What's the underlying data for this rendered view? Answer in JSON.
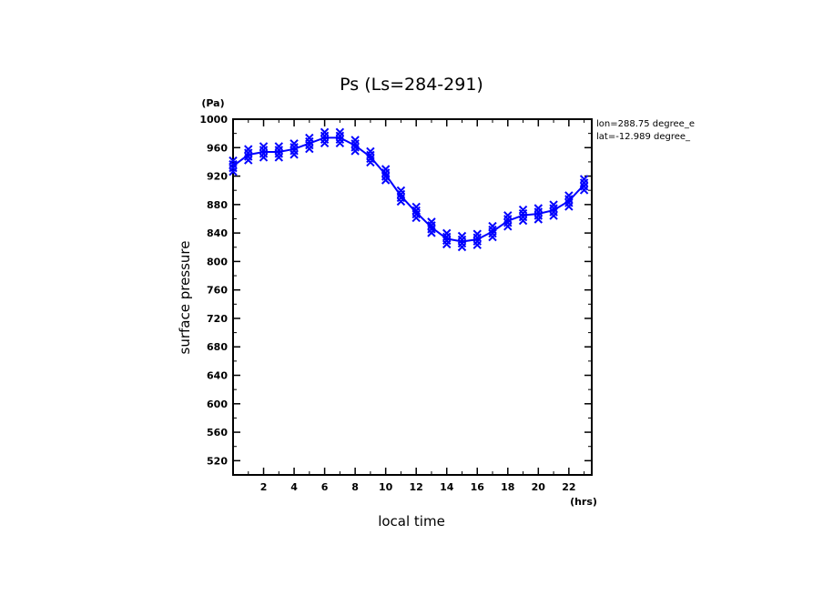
{
  "chart_data": {
    "type": "line",
    "title": "Ps (Ls=284-291)",
    "xlabel": "local time",
    "ylabel": "surface pressure",
    "x_unit": "(hrs)",
    "y_unit": "(Pa)",
    "xlim": [
      0,
      23.5
    ],
    "ylim": [
      500,
      1000
    ],
    "x_ticks": [
      2,
      4,
      6,
      8,
      10,
      12,
      14,
      16,
      18,
      20,
      22
    ],
    "y_ticks": [
      520,
      560,
      600,
      640,
      680,
      720,
      760,
      800,
      840,
      880,
      920,
      960,
      1000
    ],
    "annotations": [
      "lon=288.75 degree_e",
      "lat=-12.989 degree_"
    ],
    "series_color": "#0000ff",
    "series": [
      {
        "name": "surface pressure",
        "marker": "x",
        "x": [
          0,
          1,
          2,
          3,
          4,
          5,
          6,
          7,
          8,
          9,
          10,
          11,
          12,
          13,
          14,
          15,
          16,
          17,
          18,
          19,
          20,
          21,
          22,
          23
        ],
        "values": [
          934,
          950,
          954,
          954,
          958,
          966,
          974,
          974,
          963,
          947,
          922,
          892,
          869,
          848,
          832,
          828,
          831,
          842,
          857,
          865,
          867,
          872,
          885,
          908
        ]
      }
    ]
  }
}
